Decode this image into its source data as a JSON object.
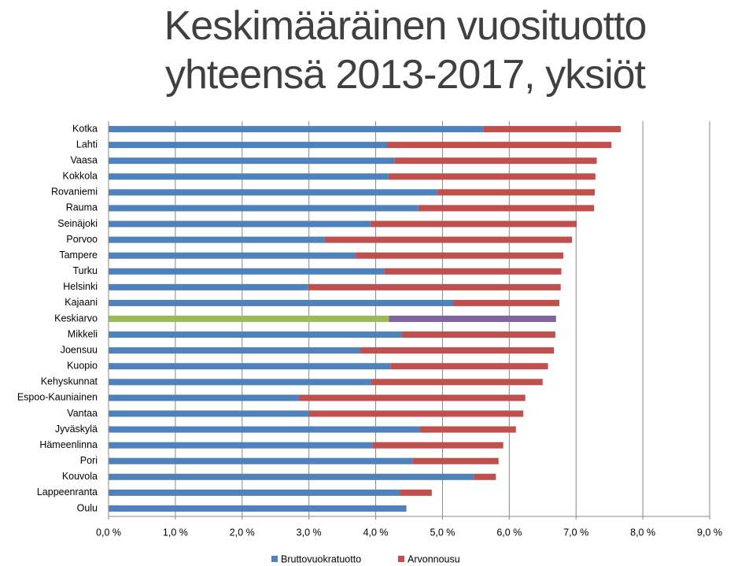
{
  "chart_data": {
    "type": "stacked_barh",
    "title": "Keskimääräinen vuosituotto yhteensä 2013-2017, yksiöt",
    "categories": [
      "Kotka",
      "Lahti",
      "Vaasa",
      "Kokkola",
      "Rovaniemi",
      "Rauma",
      "Seinäjoki",
      "Porvoo",
      "Tampere",
      "Turku",
      "Helsinki",
      "Kajaani",
      "Keskiarvo",
      "Mikkeli",
      "Joensuu",
      "Kuopio",
      "Kehyskunnat",
      "Espoo-Kauniainen",
      "Vantaa",
      "Jyväskylä",
      "Hämeenlinna",
      "Pori",
      "Kouvola",
      "Lappeenranta",
      "Oulu"
    ],
    "series": [
      {
        "name": "Bruttovuokratuotto",
        "color": "#4f81bd",
        "highlight_color": "#9bbb59",
        "values": [
          5.61,
          4.17,
          4.28,
          4.19,
          4.92,
          4.64,
          3.92,
          3.24,
          3.69,
          4.13,
          2.99,
          5.16,
          4.2,
          4.39,
          3.77,
          4.22,
          3.93,
          2.85,
          3.0,
          4.66,
          3.95,
          4.55,
          5.47,
          4.36,
          4.46
        ]
      },
      {
        "name": "Arvonnousu",
        "color": "#c0504d",
        "highlight_color": "#8064a2",
        "values": [
          2.06,
          3.36,
          3.03,
          3.1,
          2.36,
          2.63,
          3.09,
          3.7,
          3.12,
          2.65,
          3.78,
          1.59,
          2.5,
          2.3,
          2.9,
          2.36,
          2.57,
          3.39,
          3.21,
          1.44,
          1.96,
          1.29,
          0.33,
          0.48,
          0
        ]
      }
    ],
    "highlight_index": 12,
    "xlim": [
      0,
      9
    ],
    "xticks": [
      {
        "value": 0,
        "label": "0,0 %"
      },
      {
        "value": 1,
        "label": "1,0 %"
      },
      {
        "value": 2,
        "label": "2,0 %"
      },
      {
        "value": 3,
        "label": "3,0 %"
      },
      {
        "value": 4,
        "label": "4,0 %"
      },
      {
        "value": 5,
        "label": "5,0 %"
      },
      {
        "value": 6,
        "label": "6,0 %"
      },
      {
        "value": 7,
        "label": "7,0 %"
      },
      {
        "value": 8,
        "label": "8,0 %"
      },
      {
        "value": 9,
        "label": "9,0 %"
      }
    ],
    "grid": true,
    "legend": "bottom"
  }
}
